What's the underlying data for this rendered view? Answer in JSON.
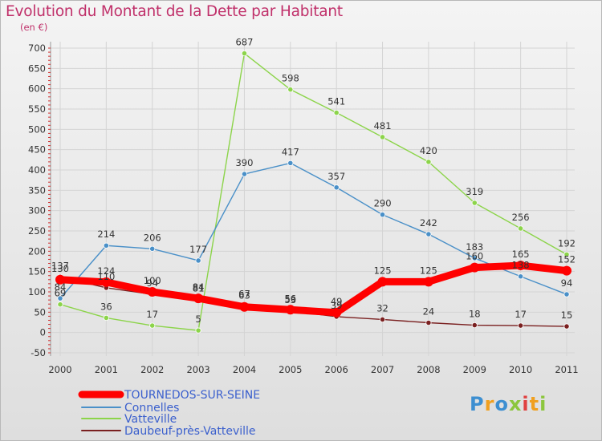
{
  "header": {
    "title": "Evolution du Montant de la Dette par Habitant",
    "subtitle": "(en €)"
  },
  "logo": {
    "text": "Proxiti"
  },
  "colors": {
    "title": "#c0306a",
    "tournedos": "#ff0000",
    "connelles": "#4a90c8",
    "vatteville": "#8cd44a",
    "daubeuf": "#7a2020"
  },
  "chart_data": {
    "type": "line",
    "title": "Evolution du Montant de la Dette par Habitant",
    "subtitle": "(en €)",
    "xlabel": "",
    "ylabel": "",
    "x": [
      "2000",
      "2001",
      "2002",
      "2003",
      "2004",
      "2005",
      "2006",
      "2007",
      "2008",
      "2009",
      "2010",
      "2011"
    ],
    "ylim": [
      -50,
      700
    ],
    "yticks": [
      -50,
      0,
      50,
      100,
      150,
      200,
      250,
      300,
      350,
      400,
      450,
      500,
      550,
      600,
      650,
      700
    ],
    "grid": true,
    "legend_position": "bottom-left",
    "series": [
      {
        "name": "TOURNEDOS-SUR-SEINE",
        "color": "#ff0000",
        "values": [
          130,
          124,
          100,
          84,
          63,
          56,
          49,
          125,
          125,
          160,
          165,
          152
        ]
      },
      {
        "name": "Connelles",
        "color": "#4a90c8",
        "values": [
          84,
          214,
          206,
          177,
          390,
          417,
          357,
          290,
          242,
          183,
          138,
          94
        ]
      },
      {
        "name": "Vatteville",
        "color": "#8cd44a",
        "values": [
          69,
          36,
          17,
          5,
          687,
          598,
          541,
          481,
          420,
          319,
          256,
          192
        ]
      },
      {
        "name": "Daubeuf-près-Vatteville",
        "color": "#7a2020",
        "values": [
          137,
          110,
          94,
          81,
          67,
          53,
          39,
          32,
          24,
          18,
          17,
          15
        ]
      }
    ]
  }
}
